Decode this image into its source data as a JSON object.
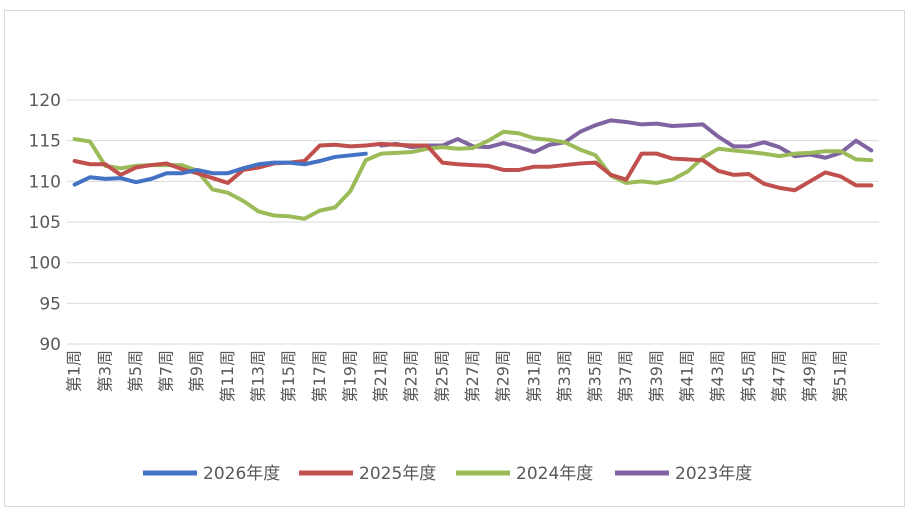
{
  "chart_data": {
    "type": "line",
    "x_tick_labels": [
      "第1周",
      "第3周",
      "第5周",
      "第7周",
      "第9周",
      "第11周",
      "第13周",
      "第15周",
      "第17周",
      "第19周",
      "第21周",
      "第23周",
      "第25周",
      "第27周",
      "第29周",
      "第31周",
      "第33周",
      "第35周",
      "第37周",
      "第39周",
      "第41周",
      "第43周",
      "第45周",
      "第47周",
      "第49周",
      "第51周"
    ],
    "ylim": [
      90,
      120
    ],
    "yticks": [
      90,
      95,
      100,
      105,
      110,
      115,
      120
    ],
    "grid": "horizontal",
    "legend_position": "bottom",
    "series": [
      {
        "name": "2026年度",
        "color": "#4472C4",
        "values": [
          109.6,
          110.5,
          110.3,
          110.4,
          109.9,
          110.3,
          111.0,
          111.0,
          111.4,
          111.0,
          111.0,
          111.6,
          112.1,
          112.3,
          112.3,
          112.1,
          112.5,
          113.0,
          113.2,
          113.4
        ]
      },
      {
        "name": "2025年度",
        "color": "#C0504D",
        "values": [
          112.5,
          112.1,
          112.1,
          110.8,
          111.7,
          112.0,
          112.2,
          111.5,
          111.0,
          110.4,
          109.8,
          111.4,
          111.7,
          112.2,
          112.3,
          112.5,
          114.4,
          114.5,
          114.3,
          114.4,
          114.6,
          114.5,
          114.4,
          114.4,
          112.3,
          112.1,
          112.0,
          111.9,
          111.4,
          111.4,
          111.8,
          111.8,
          112.0,
          112.2,
          112.3,
          110.8,
          110.2,
          113.4,
          113.4,
          112.8,
          112.7,
          112.6,
          111.3,
          110.8,
          110.9,
          109.7,
          109.2,
          108.9,
          110.0,
          111.1,
          110.6,
          109.5,
          109.5
        ]
      },
      {
        "name": "2024年度",
        "color": "#9BBB59",
        "values": [
          115.2,
          114.9,
          111.9,
          111.6,
          111.9,
          112.0,
          112.0,
          112.0,
          111.3,
          109.0,
          108.6,
          107.6,
          106.3,
          105.8,
          105.7,
          105.4,
          106.4,
          106.8,
          108.8,
          112.6,
          113.4,
          113.5,
          113.6,
          114.0,
          114.2,
          114.0,
          114.1,
          115.0,
          116.1,
          115.9,
          115.3,
          115.1,
          114.8,
          113.9,
          113.2,
          110.7,
          109.8,
          110.0,
          109.8,
          110.2,
          111.2,
          112.9,
          114.0,
          113.8,
          113.6,
          113.4,
          113.1,
          113.4,
          113.5,
          113.7,
          113.7,
          112.7,
          112.6
        ]
      },
      {
        "name": "2023年度",
        "color": "#8064A2",
        "values": [
          null,
          null,
          null,
          null,
          null,
          null,
          null,
          null,
          null,
          null,
          null,
          null,
          null,
          null,
          null,
          null,
          null,
          null,
          null,
          null,
          114.4,
          114.6,
          114.2,
          114.4,
          114.4,
          115.2,
          114.3,
          114.2,
          114.7,
          114.2,
          113.6,
          114.5,
          114.8,
          116.1,
          116.9,
          117.5,
          117.3,
          117.0,
          117.1,
          116.8,
          116.9,
          117.0,
          115.5,
          114.3,
          114.3,
          114.8,
          114.2,
          113.1,
          113.3,
          112.9,
          113.5,
          115.0,
          113.8
        ]
      }
    ]
  }
}
